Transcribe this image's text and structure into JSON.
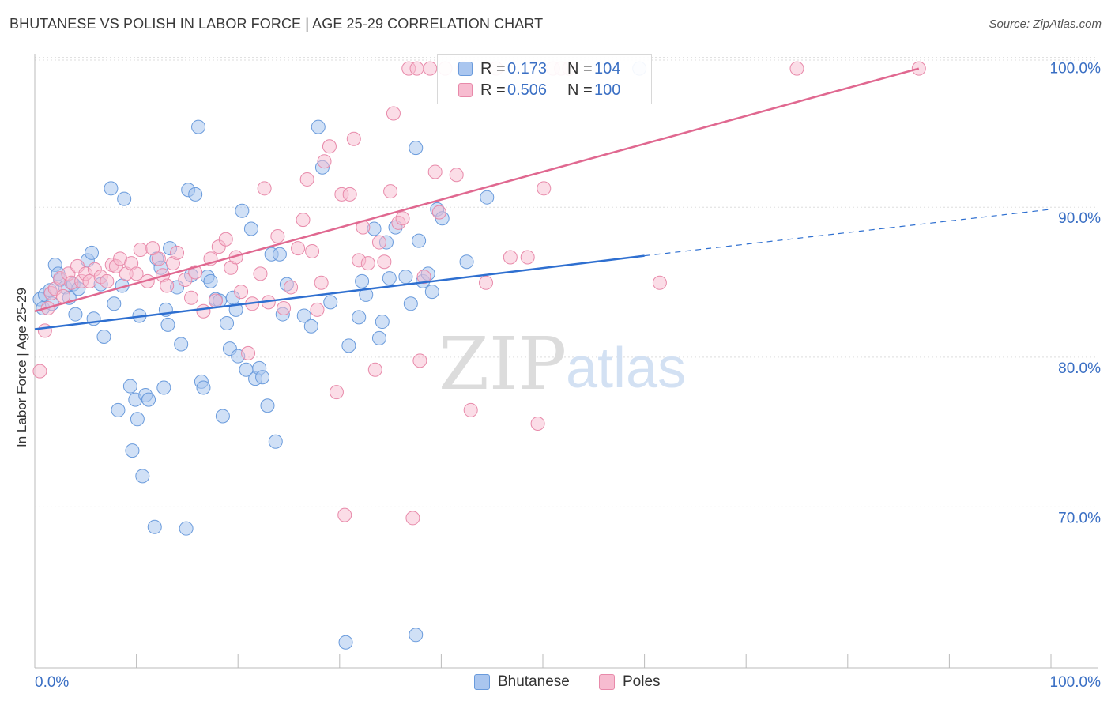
{
  "title": "BHUTANESE VS POLISH IN LABOR FORCE | AGE 25-29 CORRELATION CHART",
  "source": "Source: ZipAtlas.com",
  "watermark": {
    "zip": "ZIP",
    "atlas": "atlas"
  },
  "legend": {
    "rows": [
      {
        "r_label": "R =",
        "r_value": "0.173",
        "n_label": "N =",
        "n_value": "104"
      },
      {
        "r_label": "R =",
        "r_value": "0.506",
        "n_label": "N =",
        "n_value": "100"
      }
    ]
  },
  "bottom_legend": [
    "Bhutanese",
    "Poles"
  ],
  "colors": {
    "bhutanese_fill": "#aac6ef",
    "bhutanese_stroke": "#6a9bdc",
    "bhutanese_line": "#2e6fd0",
    "poles_fill": "#f7bcd0",
    "poles_stroke": "#e88aaa",
    "poles_line": "#e06890",
    "tick_label": "#3a6fc4",
    "grid": "#dddddd"
  },
  "chart_data": {
    "type": "scatter",
    "title": "BHUTANESE VS POLISH IN LABOR FORCE | AGE 25-29 CORRELATION CHART",
    "ylabel": "In Labor Force | Age 25-29",
    "xlabel": "",
    "xlim": [
      0,
      100
    ],
    "ylim": [
      60.0,
      101.3
    ],
    "x_tick_labels": [
      {
        "value": 0,
        "label": "0.0%"
      },
      {
        "value": 100,
        "label": "100.0%"
      }
    ],
    "y_tick_labels": [
      {
        "value": 100,
        "label": "100.0%"
      },
      {
        "value": 90,
        "label": "90.0%"
      },
      {
        "value": 80,
        "label": "80.0%"
      },
      {
        "value": 70,
        "label": "70.0%"
      }
    ],
    "grid": true,
    "legend_position": "top-center",
    "series": [
      {
        "name": "Bhutanese",
        "trend": {
          "x0": 0,
          "y0": 82.6,
          "x1": 60,
          "y1": 87.5,
          "dashed_to_x": 100,
          "dashed_y": 90.6
        },
        "points": [
          [
            0.5,
            84.6
          ],
          [
            0.8,
            84.0
          ],
          [
            1.0,
            84.9
          ],
          [
            1.5,
            85.2
          ],
          [
            1.7,
            84.3
          ],
          [
            2.0,
            86.9
          ],
          [
            2.3,
            86.3
          ],
          [
            2.5,
            85.9
          ],
          [
            3.0,
            85.4
          ],
          [
            3.4,
            84.7
          ],
          [
            3.8,
            85.6
          ],
          [
            4.0,
            83.6
          ],
          [
            4.3,
            85.3
          ],
          [
            5.2,
            87.2
          ],
          [
            5.6,
            87.7
          ],
          [
            5.8,
            83.3
          ],
          [
            6.5,
            85.6
          ],
          [
            6.8,
            82.1
          ],
          [
            7.5,
            92.0
          ],
          [
            7.8,
            84.3
          ],
          [
            8.2,
            77.2
          ],
          [
            8.6,
            85.5
          ],
          [
            8.8,
            91.3
          ],
          [
            9.4,
            78.8
          ],
          [
            9.6,
            74.5
          ],
          [
            9.9,
            77.9
          ],
          [
            10.1,
            76.6
          ],
          [
            10.3,
            83.5
          ],
          [
            10.6,
            72.8
          ],
          [
            10.9,
            78.2
          ],
          [
            11.2,
            77.9
          ],
          [
            11.8,
            69.4
          ],
          [
            12.0,
            87.3
          ],
          [
            12.4,
            86.7
          ],
          [
            12.7,
            78.7
          ],
          [
            12.9,
            83.9
          ],
          [
            13.1,
            82.9
          ],
          [
            13.3,
            88.0
          ],
          [
            14.0,
            85.4
          ],
          [
            14.4,
            81.6
          ],
          [
            14.9,
            69.3
          ],
          [
            15.1,
            91.9
          ],
          [
            15.4,
            86.2
          ],
          [
            15.8,
            91.6
          ],
          [
            16.1,
            96.1
          ],
          [
            16.4,
            79.1
          ],
          [
            16.6,
            78.7
          ],
          [
            17.0,
            86.1
          ],
          [
            17.3,
            85.8
          ],
          [
            17.8,
            84.6
          ],
          [
            18.2,
            84.5
          ],
          [
            18.5,
            76.8
          ],
          [
            18.9,
            83.0
          ],
          [
            19.2,
            81.3
          ],
          [
            19.5,
            84.7
          ],
          [
            19.8,
            83.9
          ],
          [
            20.0,
            80.8
          ],
          [
            20.4,
            90.5
          ],
          [
            20.8,
            79.9
          ],
          [
            21.3,
            89.3
          ],
          [
            21.7,
            79.3
          ],
          [
            22.1,
            80.0
          ],
          [
            22.4,
            79.4
          ],
          [
            22.9,
            77.5
          ],
          [
            23.3,
            87.6
          ],
          [
            23.7,
            75.1
          ],
          [
            24.1,
            87.6
          ],
          [
            24.4,
            83.6
          ],
          [
            24.8,
            85.6
          ],
          [
            26.5,
            83.5
          ],
          [
            27.2,
            82.8
          ],
          [
            27.9,
            96.1
          ],
          [
            28.3,
            93.4
          ],
          [
            29.1,
            84.4
          ],
          [
            30.6,
            61.7
          ],
          [
            30.9,
            81.5
          ],
          [
            31.9,
            83.4
          ],
          [
            32.2,
            85.8
          ],
          [
            32.6,
            84.9
          ],
          [
            33.4,
            89.3
          ],
          [
            33.9,
            82.0
          ],
          [
            34.2,
            83.1
          ],
          [
            34.6,
            88.4
          ],
          [
            34.9,
            86.0
          ],
          [
            35.5,
            89.4
          ],
          [
            36.5,
            86.1
          ],
          [
            37.0,
            84.3
          ],
          [
            37.5,
            94.7
          ],
          [
            37.8,
            88.5
          ],
          [
            37.5,
            62.2
          ],
          [
            38.2,
            85.8
          ],
          [
            38.7,
            86.3
          ],
          [
            39.1,
            85.1
          ],
          [
            39.6,
            90.6
          ],
          [
            40.1,
            90.0
          ],
          [
            42.5,
            87.1
          ],
          [
            44.5,
            91.4
          ],
          [
            59.5,
            100.0
          ]
        ]
      },
      {
        "name": "Poles",
        "trend": {
          "x0": 0,
          "y0": 83.8,
          "x1": 87,
          "y1": 100.0
        },
        "points": [
          [
            0.5,
            79.8
          ],
          [
            1.0,
            82.5
          ],
          [
            1.3,
            84.0
          ],
          [
            1.6,
            85.0
          ],
          [
            2.0,
            85.3
          ],
          [
            2.5,
            86.0
          ],
          [
            2.8,
            84.8
          ],
          [
            3.3,
            86.3
          ],
          [
            3.6,
            85.7
          ],
          [
            4.2,
            86.8
          ],
          [
            4.6,
            85.8
          ],
          [
            5.0,
            86.3
          ],
          [
            5.4,
            85.8
          ],
          [
            5.9,
            86.6
          ],
          [
            6.5,
            86.1
          ],
          [
            7.1,
            85.8
          ],
          [
            7.6,
            86.9
          ],
          [
            8.0,
            86.8
          ],
          [
            8.4,
            87.3
          ],
          [
            9.0,
            86.3
          ],
          [
            9.5,
            87.0
          ],
          [
            10.0,
            86.3
          ],
          [
            10.4,
            87.9
          ],
          [
            11.1,
            85.8
          ],
          [
            11.6,
            88.0
          ],
          [
            12.2,
            87.3
          ],
          [
            12.6,
            86.2
          ],
          [
            13.0,
            85.5
          ],
          [
            13.6,
            87.0
          ],
          [
            14.0,
            87.7
          ],
          [
            14.8,
            85.9
          ],
          [
            15.4,
            84.7
          ],
          [
            15.8,
            86.4
          ],
          [
            16.6,
            83.8
          ],
          [
            17.3,
            87.3
          ],
          [
            17.8,
            84.5
          ],
          [
            18.1,
            88.1
          ],
          [
            18.8,
            88.6
          ],
          [
            19.3,
            86.7
          ],
          [
            19.8,
            87.4
          ],
          [
            20.3,
            85.1
          ],
          [
            21.0,
            81.0
          ],
          [
            21.4,
            84.3
          ],
          [
            22.2,
            86.3
          ],
          [
            22.6,
            92.0
          ],
          [
            23.0,
            84.4
          ],
          [
            23.9,
            88.8
          ],
          [
            24.5,
            84.0
          ],
          [
            25.2,
            85.4
          ],
          [
            25.9,
            88.0
          ],
          [
            26.4,
            89.9
          ],
          [
            26.8,
            92.6
          ],
          [
            27.3,
            87.8
          ],
          [
            27.8,
            83.9
          ],
          [
            28.2,
            85.7
          ],
          [
            28.5,
            93.8
          ],
          [
            29.0,
            94.8
          ],
          [
            29.7,
            78.4
          ],
          [
            30.2,
            91.6
          ],
          [
            30.5,
            70.2
          ],
          [
            31.0,
            91.6
          ],
          [
            31.4,
            95.3
          ],
          [
            31.9,
            87.2
          ],
          [
            32.3,
            89.4
          ],
          [
            32.8,
            87.0
          ],
          [
            33.5,
            79.9
          ],
          [
            33.9,
            88.4
          ],
          [
            34.4,
            87.1
          ],
          [
            35.0,
            91.8
          ],
          [
            35.3,
            97.0
          ],
          [
            35.8,
            89.7
          ],
          [
            36.2,
            90.0
          ],
          [
            36.8,
            100.0
          ],
          [
            37.2,
            70.0
          ],
          [
            37.6,
            100.0
          ],
          [
            37.9,
            80.5
          ],
          [
            38.3,
            86.1
          ],
          [
            38.9,
            100.0
          ],
          [
            39.4,
            93.1
          ],
          [
            39.8,
            90.4
          ],
          [
            40.4,
            100.0
          ],
          [
            41.5,
            92.9
          ],
          [
            42.2,
            100.0
          ],
          [
            42.9,
            77.2
          ],
          [
            44.4,
            85.7
          ],
          [
            45.4,
            100.0
          ],
          [
            46.8,
            87.4
          ],
          [
            48.5,
            87.4
          ],
          [
            49.5,
            76.3
          ],
          [
            50.1,
            92.0
          ],
          [
            51.0,
            100.0
          ],
          [
            51.8,
            100.0
          ],
          [
            52.6,
            100.0
          ],
          [
            61.5,
            85.7
          ],
          [
            75.0,
            100.0
          ],
          [
            87.0,
            100.0
          ]
        ]
      }
    ]
  }
}
